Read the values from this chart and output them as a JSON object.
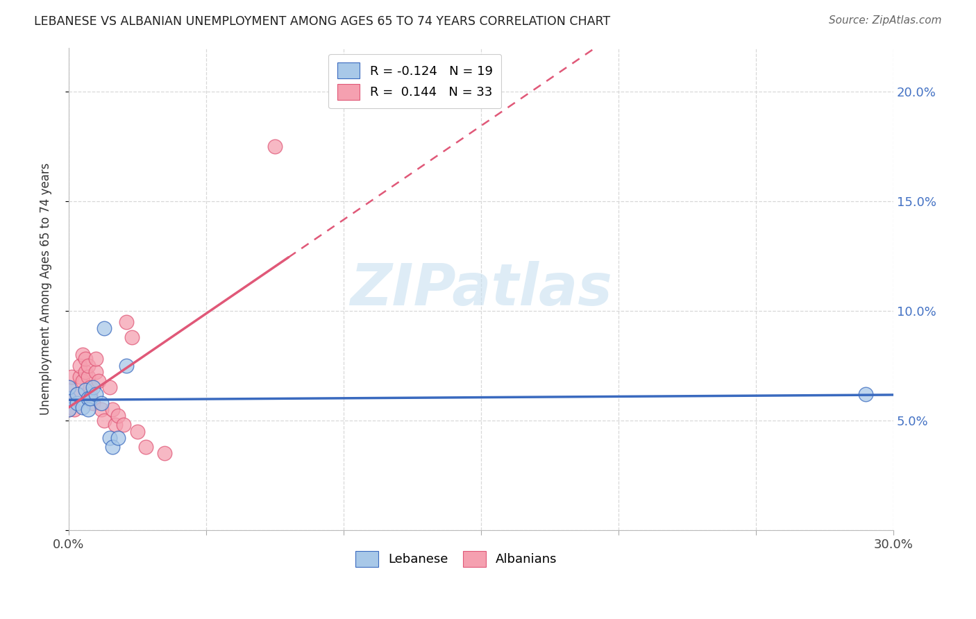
{
  "title": "LEBANESE VS ALBANIAN UNEMPLOYMENT AMONG AGES 65 TO 74 YEARS CORRELATION CHART",
  "source": "Source: ZipAtlas.com",
  "ylabel": "Unemployment Among Ages 65 to 74 years",
  "xlim": [
    0.0,
    0.3
  ],
  "ylim": [
    0.0,
    0.22
  ],
  "lebanese_x": [
    0.0,
    0.0,
    0.0,
    0.003,
    0.003,
    0.005,
    0.006,
    0.007,
    0.007,
    0.008,
    0.009,
    0.01,
    0.012,
    0.013,
    0.015,
    0.016,
    0.018,
    0.021,
    0.29
  ],
  "lebanese_y": [
    0.055,
    0.06,
    0.065,
    0.058,
    0.062,
    0.056,
    0.064,
    0.06,
    0.055,
    0.06,
    0.065,
    0.062,
    0.058,
    0.092,
    0.042,
    0.038,
    0.042,
    0.075,
    0.062
  ],
  "albanians_x": [
    0.0,
    0.0,
    0.0,
    0.001,
    0.002,
    0.003,
    0.004,
    0.004,
    0.005,
    0.005,
    0.006,
    0.006,
    0.007,
    0.007,
    0.008,
    0.008,
    0.009,
    0.01,
    0.01,
    0.011,
    0.012,
    0.013,
    0.015,
    0.016,
    0.017,
    0.018,
    0.02,
    0.021,
    0.023,
    0.025,
    0.028,
    0.035,
    0.075
  ],
  "albanians_y": [
    0.065,
    0.06,
    0.055,
    0.07,
    0.055,
    0.062,
    0.07,
    0.075,
    0.068,
    0.08,
    0.072,
    0.078,
    0.07,
    0.075,
    0.065,
    0.062,
    0.058,
    0.072,
    0.078,
    0.068,
    0.055,
    0.05,
    0.065,
    0.055,
    0.048,
    0.052,
    0.048,
    0.095,
    0.088,
    0.045,
    0.038,
    0.035,
    0.175
  ],
  "lebanese_color": "#a8c8e8",
  "albanians_color": "#f5a0b0",
  "lebanese_line_color": "#3a6abf",
  "albanians_line_color": "#e05878",
  "background_color": "#ffffff",
  "grid_color": "#d8d8d8",
  "watermark_text": "ZIPatlas",
  "watermark_color": "#c8e0f0"
}
